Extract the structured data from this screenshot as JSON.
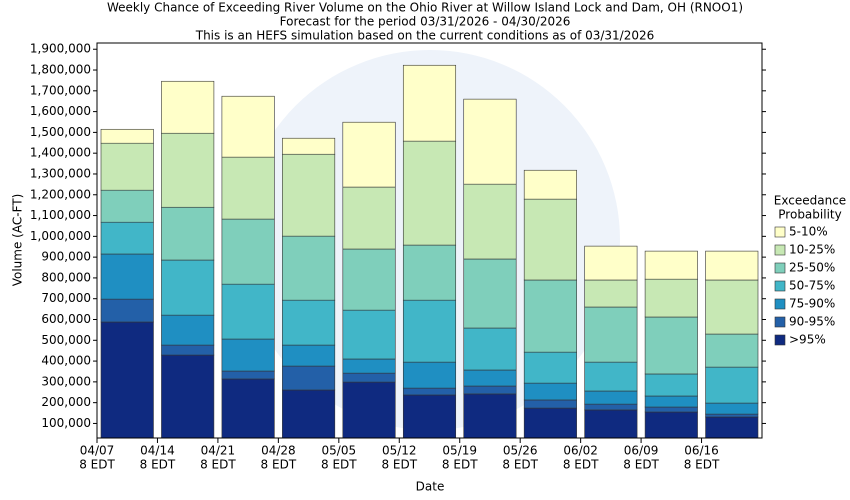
{
  "chart_data": {
    "type": "stacked-bar",
    "title": "Weekly Chance of Exceeding River Volume on the Ohio River at Willow Island Lock and Dam, OH (RNOO1)",
    "subtitle": [
      "Forecast for the period 03/31/2026 - 04/30/2026",
      "This is an HEFS simulation based on the current conditions as of 03/31/2026"
    ],
    "x_label": "Date",
    "y_label": "Volume (AC-FT)",
    "legend_title": [
      "Exceedance",
      "Probability"
    ],
    "legend_position": "right",
    "categories": [
      [
        "04/07",
        "8 EDT"
      ],
      [
        "04/14",
        "8 EDT"
      ],
      [
        "04/21",
        "8 EDT"
      ],
      [
        "04/28",
        "8 EDT"
      ],
      [
        "05/05",
        "8 EDT"
      ],
      [
        "05/12",
        "8 EDT"
      ],
      [
        "05/19",
        "8 EDT"
      ],
      [
        "05/26",
        "8 EDT"
      ],
      [
        "06/02",
        "8 EDT"
      ],
      [
        "06/09",
        "8 EDT"
      ],
      [
        "06/16",
        "8 EDT"
      ]
    ],
    "series": [
      {
        "name": ">95%",
        "color": "#0f2a80",
        "values": [
          588000,
          429000,
          314000,
          261000,
          299000,
          237000,
          242000,
          174000,
          165000,
          155000,
          131000
        ]
      },
      {
        "name": "90-95%",
        "color": "#2360a8",
        "values": [
          110000,
          48000,
          38000,
          115000,
          43000,
          33000,
          38000,
          39000,
          28000,
          24000,
          14000
        ]
      },
      {
        "name": "75-90%",
        "color": "#1f8fc2",
        "values": [
          217000,
          144000,
          154000,
          101000,
          68000,
          125000,
          77000,
          81000,
          63000,
          53000,
          53000
        ]
      },
      {
        "name": "50-75%",
        "color": "#41b6c8",
        "values": [
          153000,
          265000,
          264000,
          216000,
          235000,
          298000,
          202000,
          149000,
          139000,
          106000,
          173000
        ]
      },
      {
        "name": "25-50%",
        "color": "#7fcfbb",
        "values": [
          154000,
          254000,
          313000,
          308000,
          294000,
          265000,
          332000,
          347000,
          265000,
          274000,
          159000
        ]
      },
      {
        "name": "10-25%",
        "color": "#c7e8b4",
        "values": [
          226000,
          356000,
          298000,
          394000,
          298000,
          500000,
          360000,
          389000,
          130000,
          182000,
          260000
        ]
      },
      {
        "name": "5-10%",
        "color": "#ffffc9",
        "values": [
          67000,
          250000,
          293000,
          77000,
          312000,
          365000,
          409000,
          139000,
          163000,
          135000,
          139000
        ]
      }
    ],
    "ylim": [
      30000,
      1930000
    ],
    "yticks": [
      {
        "value": 100000,
        "label": "100,000"
      },
      {
        "value": 200000,
        "label": "200,000"
      },
      {
        "value": 300000,
        "label": "300,000"
      },
      {
        "value": 400000,
        "label": "400,000"
      },
      {
        "value": 500000,
        "label": "500,000"
      },
      {
        "value": 600000,
        "label": "600,000"
      },
      {
        "value": 700000,
        "label": "700,000"
      },
      {
        "value": 800000,
        "label": "800,000"
      },
      {
        "value": 900000,
        "label": "900,000"
      },
      {
        "value": 1000000,
        "label": "1,000,000"
      },
      {
        "value": 1100000,
        "label": "1,100,000"
      },
      {
        "value": 1200000,
        "label": "1,200,000"
      },
      {
        "value": 1300000,
        "label": "1,300,000"
      },
      {
        "value": 1400000,
        "label": "1,400,000"
      },
      {
        "value": 1500000,
        "label": "1,500,000"
      },
      {
        "value": 1600000,
        "label": "1,600,000"
      },
      {
        "value": 1700000,
        "label": "1,700,000"
      },
      {
        "value": 1800000,
        "label": "1,800,000"
      },
      {
        "value": 1900000,
        "label": "1,900,000"
      }
    ],
    "grid": false
  }
}
